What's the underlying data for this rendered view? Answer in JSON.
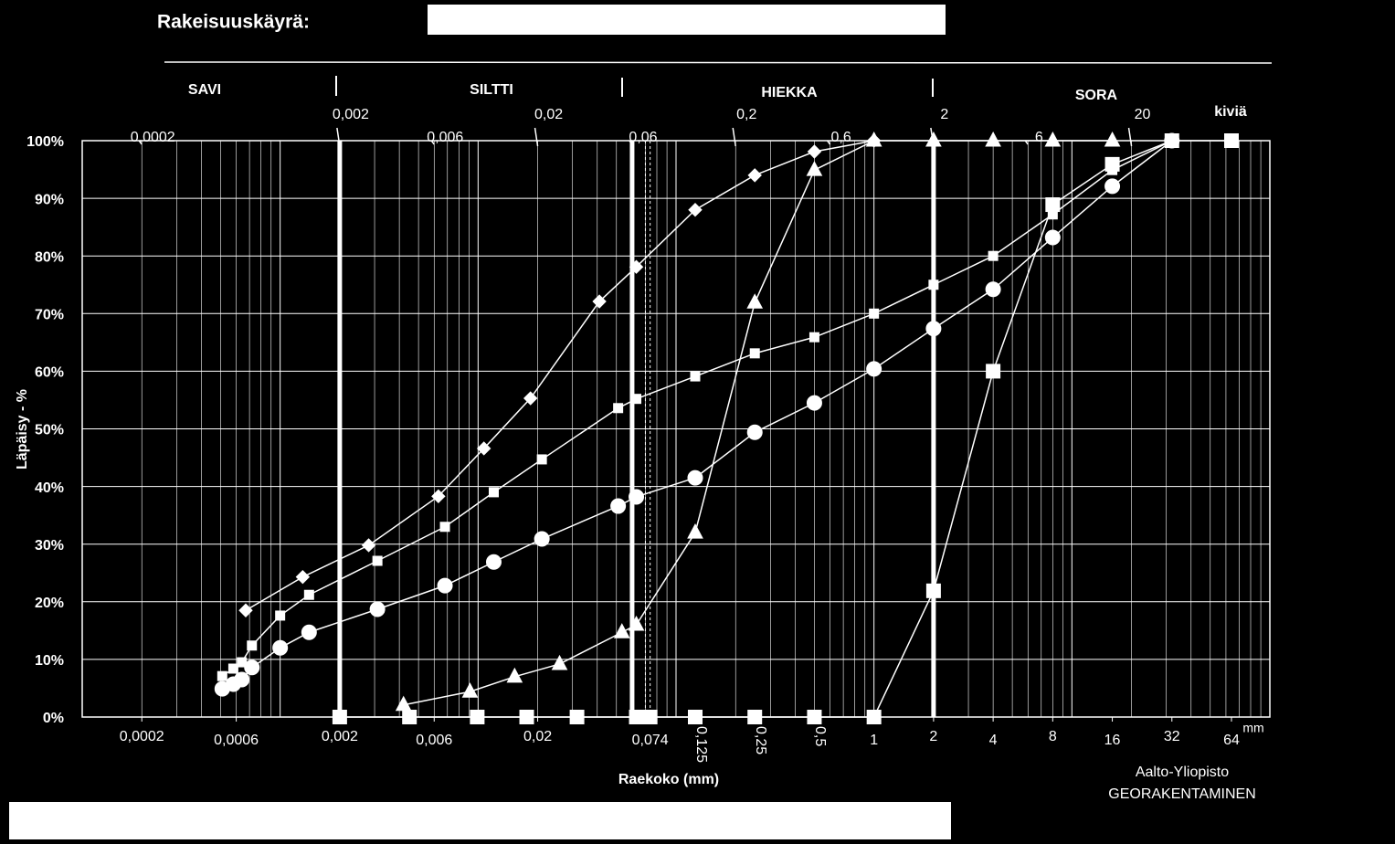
{
  "chart_data": {
    "type": "line",
    "title": "Rakeisuuskäyrä:",
    "x_label": "Raekoko (mm)",
    "x_unit": "mm",
    "y_label": "Läpäisy - %",
    "credit": [
      "Aalto-Yliopisto",
      "GEORAKENTAMINEN"
    ],
    "zones": [
      "SAVI",
      "SILTTI",
      "HIEKKA",
      "SORA",
      "kiviä"
    ],
    "log_x": true,
    "grid": true,
    "xlim": [
      0.0001,
      100
    ],
    "ylim": [
      0,
      100
    ],
    "yticks": [
      {
        "value": 0,
        "label": "0%"
      },
      {
        "value": 10,
        "label": "10%"
      },
      {
        "value": 20,
        "label": "20%"
      },
      {
        "value": 30,
        "label": "30%"
      },
      {
        "value": 40,
        "label": "40%"
      },
      {
        "value": 50,
        "label": "50%"
      },
      {
        "value": 60,
        "label": "60%"
      },
      {
        "value": 70,
        "label": "70%"
      },
      {
        "value": 80,
        "label": "80%"
      },
      {
        "value": 90,
        "label": "90%"
      },
      {
        "value": 100,
        "label": "100%"
      }
    ],
    "xticks": [
      {
        "value": 0.0002,
        "label": "0,0002"
      },
      {
        "value": 0.0006,
        "label": "0,0006"
      },
      {
        "value": 0.002,
        "label": "0,002"
      },
      {
        "value": 0.006,
        "label": "0,006"
      },
      {
        "value": 0.02,
        "label": "0,02"
      },
      {
        "value": 0.074,
        "label": "0,074"
      },
      {
        "value": 0.125,
        "label": "0,125"
      },
      {
        "value": 0.25,
        "label": "0,25"
      },
      {
        "value": 0.5,
        "label": "0,5"
      },
      1,
      2,
      4,
      8,
      16,
      32,
      64
    ],
    "top_xticks": [
      {
        "value": 0.0002,
        "label": "0,0002"
      },
      {
        "value": 0.002,
        "label": "0,002"
      },
      {
        "value": 0.006,
        "label": "0,006"
      },
      {
        "value": 0.02,
        "label": "0,02"
      },
      {
        "value": 0.06,
        "label": "0,06"
      },
      {
        "value": 0.2,
        "label": "0,2"
      },
      {
        "value": 0.6,
        "label": "0,6"
      },
      2,
      6,
      20
    ],
    "boundaries": [
      0.002,
      0.06,
      2
    ],
    "dashed_lines": [
      0.07,
      0.074
    ],
    "series": [
      {
        "marker": "diamond",
        "color": "#ffffff",
        "x": [
          0.00067,
          0.0013,
          0.0028,
          0.0063,
          0.0107,
          0.0184,
          0.041,
          0.063,
          0.125,
          0.25,
          0.5,
          1
        ],
        "values": [
          18.5,
          24.3,
          29.8,
          38.3,
          46.6,
          55.3,
          72.1,
          78.1,
          88,
          94,
          98.1,
          100
        ]
      },
      {
        "marker": "small-square",
        "color": "#ffffff",
        "x": [
          0.00051,
          0.00058,
          0.00064,
          0.00072,
          0.001,
          0.0014,
          0.0031,
          0.0068,
          0.012,
          0.021,
          0.051,
          0.063,
          0.125,
          0.25,
          0.5,
          1,
          2,
          4,
          8,
          16,
          32
        ],
        "values": [
          7.1,
          8.4,
          9.5,
          12.4,
          17.6,
          21.2,
          27.1,
          33,
          39,
          44.7,
          53.6,
          55.2,
          59.1,
          63.1,
          65.9,
          70,
          75,
          80,
          87.2,
          94.9,
          100
        ]
      },
      {
        "marker": "circle",
        "color": "#ffffff",
        "x": [
          0.00051,
          0.00058,
          0.00064,
          0.00072,
          0.001,
          0.0014,
          0.0031,
          0.0068,
          0.012,
          0.021,
          0.051,
          0.063,
          0.125,
          0.25,
          0.5,
          1,
          2,
          4,
          8,
          16,
          32
        ],
        "values": [
          4.9,
          5.7,
          6.5,
          8.6,
          12,
          14.7,
          18.7,
          22.8,
          26.9,
          30.9,
          36.6,
          38.2,
          41.5,
          49.4,
          54.5,
          60.4,
          67.4,
          74.2,
          83.2,
          92.1,
          100
        ]
      },
      {
        "marker": "triangle",
        "color": "#ffffff",
        "x": [
          0.0042,
          0.0091,
          0.0153,
          0.0258,
          0.0533,
          0.063,
          0.125,
          0.25,
          0.5,
          1,
          2,
          4,
          8,
          16
        ],
        "values": [
          2.1,
          4.4,
          7,
          9.2,
          14.7,
          16,
          32,
          71.9,
          94.9,
          100,
          100,
          100,
          100,
          100
        ]
      },
      {
        "marker": "big-square",
        "color": "#ffffff",
        "x": [
          0.002,
          0.0045,
          0.0099,
          0.0176,
          0.0316,
          0.063,
          0.074,
          0.125,
          0.25,
          0.5,
          1,
          2,
          4,
          8,
          16,
          32,
          64
        ],
        "values": [
          0,
          0,
          0,
          0,
          0,
          0,
          0,
          0,
          0,
          0,
          0,
          21.9,
          60,
          88.9,
          95.9,
          100,
          100
        ]
      }
    ]
  }
}
